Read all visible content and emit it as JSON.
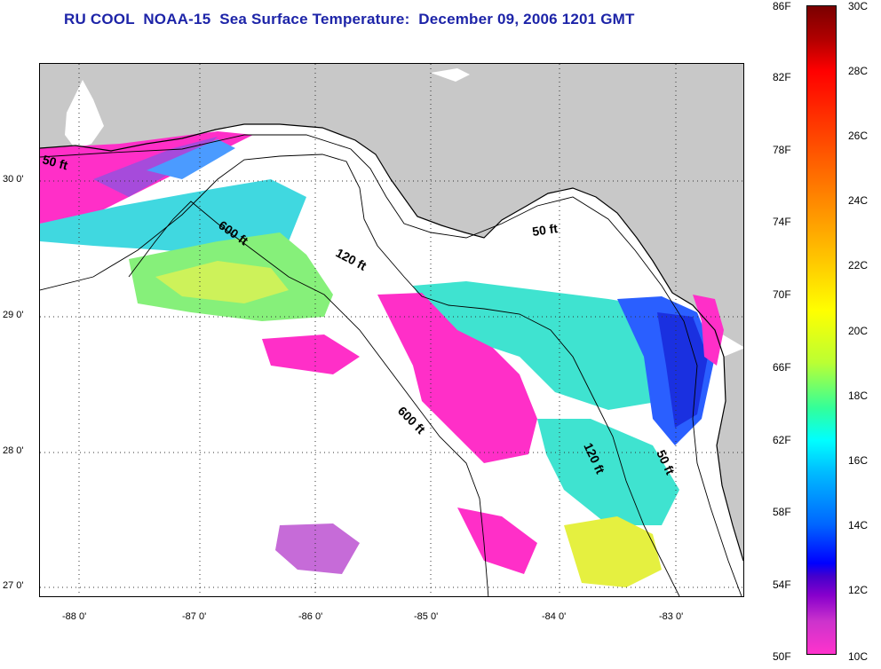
{
  "title": "RU COOL  NOAA-15  Sea Surface Temperature:  December 09, 2006 1201 GMT",
  "latitude_labels": [
    "30 0'",
    "29 0'",
    "28 0'",
    "27 0'"
  ],
  "longitude_labels": [
    "-88 0'",
    "-87 0'",
    "-86 0'",
    "-85 0'",
    "-84 0'",
    "-83 0'"
  ],
  "colorbar": {
    "fahrenheit_ticks": [
      "86F",
      "82F",
      "78F",
      "74F",
      "70F",
      "66F",
      "62F",
      "58F",
      "54F",
      "50F"
    ],
    "celsius_ticks": [
      "30C",
      "28C",
      "26C",
      "24C",
      "22C",
      "20C",
      "18C",
      "16C",
      "14C",
      "12C",
      "10C"
    ],
    "colors": [
      "#7a0000",
      "#ff0000",
      "#ff8800",
      "#ffff00",
      "#33ff99",
      "#00ffff",
      "#0066ff",
      "#0000ff",
      "#ff33cc"
    ]
  },
  "contour_labels": {
    "c50_west": "50 ft",
    "c600_north": "600 ft",
    "c120_north": "120 ft",
    "c50_east": "50 ft",
    "c600_south": "600 ft",
    "c120_south": "120 ft",
    "c50_south": "50 ft"
  },
  "colors": {
    "land": "#c8c8c8",
    "title": "#1d24a8",
    "cloud": "#ffffff"
  }
}
